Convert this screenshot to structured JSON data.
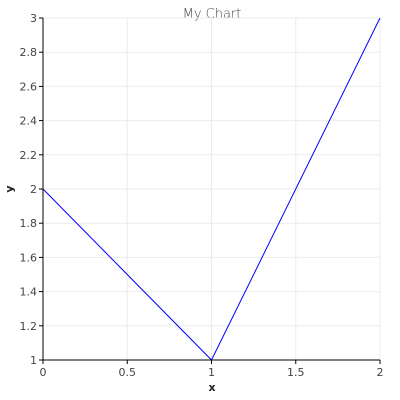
{
  "chart_data": {
    "type": "line",
    "title": "My Chart",
    "xlabel": "x",
    "ylabel": "y",
    "xlim": [
      0,
      2
    ],
    "ylim": [
      1,
      3
    ],
    "xticks": [
      0,
      0.5,
      1,
      1.5,
      2
    ],
    "xtick_labels": [
      "0",
      "0.5",
      "1",
      "1.5",
      "2"
    ],
    "yticks": [
      1,
      1.2,
      1.4,
      1.6,
      1.8,
      2,
      2.2,
      2.4,
      2.6,
      2.8,
      3
    ],
    "ytick_labels": [
      "1",
      "1.2",
      "1.4",
      "1.6",
      "1.8",
      "2",
      "2.2",
      "2.4",
      "2.6",
      "2.8",
      "3"
    ],
    "grid": true,
    "legend": "none",
    "series": [
      {
        "x": [
          0,
          1,
          2
        ],
        "y": [
          2,
          1,
          3
        ],
        "color": "#0000ff"
      }
    ]
  }
}
